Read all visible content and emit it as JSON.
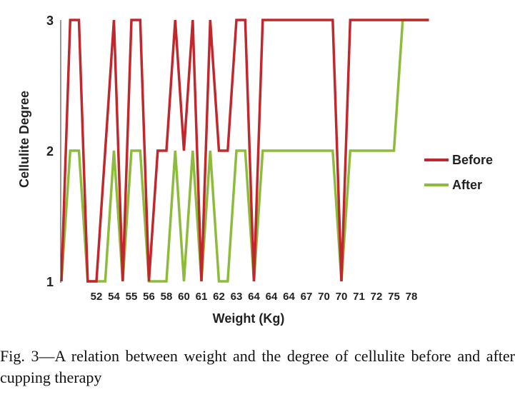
{
  "chart_data": {
    "type": "line",
    "xlabel": "Weight (Kg)",
    "ylabel": "Cellulite Degree",
    "ylim": [
      1,
      3
    ],
    "yticks": [
      1,
      2,
      3
    ],
    "categories": [
      "",
      "",
      "52",
      "54",
      "55",
      "56",
      "58",
      "60",
      "61",
      "62",
      "63",
      "64",
      "64",
      "64",
      "67",
      "70",
      "70",
      "71",
      "72",
      "75",
      "78",
      ""
    ],
    "x_values": [
      0,
      0.5,
      1,
      1.5,
      2,
      2.5,
      3,
      3.5,
      4,
      4.5,
      5,
      5.5,
      6,
      6.5,
      7,
      7.5,
      8,
      8.5,
      9,
      9.5,
      10,
      10.5,
      11,
      11.5,
      12,
      12.5,
      13,
      13.5,
      14,
      14.5,
      15,
      15.5,
      16,
      16.5,
      17,
      17.5,
      18,
      18.5,
      19,
      19.5,
      20,
      20.5,
      21
    ],
    "series": [
      {
        "name": "Before",
        "color": "#c0282d",
        "values": [
          1,
          3,
          3,
          1,
          1,
          2,
          3,
          1,
          3,
          3,
          1,
          2,
          2,
          3,
          2,
          3,
          1,
          3,
          2,
          2,
          3,
          3,
          1,
          3,
          3,
          3,
          3,
          3,
          3,
          3,
          3,
          3,
          1,
          3,
          3,
          3,
          3,
          3,
          3,
          3,
          3,
          3,
          3
        ]
      },
      {
        "name": "After",
        "color": "#8dbb3b",
        "values": [
          1,
          2,
          2,
          1,
          1,
          1,
          2,
          1,
          2,
          2,
          1,
          1,
          1,
          2,
          1,
          2,
          1,
          2,
          1,
          1,
          2,
          2,
          1,
          2,
          2,
          2,
          2,
          2,
          2,
          2,
          2,
          2,
          1,
          2,
          2,
          2,
          2,
          2,
          2,
          3,
          3,
          3,
          3
        ]
      }
    ],
    "legend_position": "right",
    "grid": false
  },
  "caption": "Fig. 3—A relation between weight and the degree of cellulite before and after cupping therapy"
}
